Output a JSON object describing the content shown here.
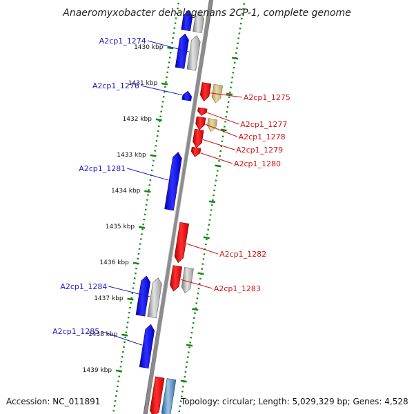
{
  "title": "Anaeromyxobacter dehalogenans 2CP-1, complete genome",
  "footer": {
    "accession": "Accession: NC_011891",
    "topology": "Topology: circular; Length: 5,029,329 bp; Genes: 4,528"
  },
  "colors": {
    "forward": "#0000ee",
    "reverse": "#ee0000",
    "label_forward": "#1a1acc",
    "label_reverse": "#d01010",
    "backbone": "#8c8c8c",
    "ticks": "#118811",
    "gray": "#999999",
    "khaki": "#c8bb7a",
    "steel": "#4a7fb0"
  },
  "genome_track": {
    "positions_kbp": [
      1430,
      1431,
      1432,
      1433,
      1434,
      1435,
      1436,
      1437,
      1438,
      1439
    ],
    "tick_labels": [
      "1430 kbp",
      "1431 kbp",
      "1432 kbp",
      "1433 kbp",
      "1434 kbp",
      "1435 kbp",
      "1436 kbp",
      "1437 kbp",
      "1438 kbp",
      "1439 kbp"
    ]
  },
  "genes": [
    {
      "label": "",
      "strand": "+",
      "color": "gray",
      "start_kbp": 1428.9,
      "end_kbp": 1429.45
    },
    {
      "label": "",
      "strand": "+",
      "color": "forward",
      "start_kbp": 1428.9,
      "end_kbp": 1429.45
    },
    {
      "label": "A2cp1_1274",
      "strand": "+",
      "color": "gray",
      "start_kbp": 1429.55,
      "end_kbp": 1430.5
    },
    {
      "label": "",
      "strand": "+",
      "color": "forward",
      "start_kbp": 1429.55,
      "end_kbp": 1430.5
    },
    {
      "label": "A2cp1_1275",
      "strand": "-",
      "color": "reverse",
      "start_kbp": 1430.8,
      "end_kbp": 1431.3
    },
    {
      "label": "",
      "strand": "-",
      "color": "khaki",
      "start_kbp": 1430.8,
      "end_kbp": 1431.3
    },
    {
      "label": "A2cp1_1276",
      "strand": "+",
      "color": "forward",
      "start_kbp": 1431.1,
      "end_kbp": 1431.35
    },
    {
      "label": "A2cp1_1277",
      "strand": "-",
      "color": "reverse",
      "start_kbp": 1431.5,
      "end_kbp": 1431.7
    },
    {
      "label": "A2cp1_1278",
      "strand": "-",
      "color": "reverse",
      "start_kbp": 1431.75,
      "end_kbp": 1432.1
    },
    {
      "label": "",
      "strand": "-",
      "color": "khaki",
      "start_kbp": 1431.75,
      "end_kbp": 1432.1
    },
    {
      "label": "A2cp1_1279",
      "strand": "-",
      "color": "reverse",
      "start_kbp": 1432.1,
      "end_kbp": 1432.6
    },
    {
      "label": "A2cp1_1280",
      "strand": "-",
      "color": "reverse",
      "start_kbp": 1432.6,
      "end_kbp": 1432.85
    },
    {
      "label": "A2cp1_1281",
      "strand": "+",
      "color": "forward",
      "start_kbp": 1432.8,
      "end_kbp": 1434.4
    },
    {
      "label": "A2cp1_1282",
      "strand": "-",
      "color": "reverse",
      "start_kbp": 1434.7,
      "end_kbp": 1435.8
    },
    {
      "label": "A2cp1_1283",
      "strand": "-",
      "color": "reverse",
      "start_kbp": 1435.9,
      "end_kbp": 1436.6
    },
    {
      "label": "",
      "strand": "-",
      "color": "gray",
      "start_kbp": 1435.9,
      "end_kbp": 1436.6
    },
    {
      "label": "A2cp1_1284",
      "strand": "+",
      "color": "gray",
      "start_kbp": 1436.3,
      "end_kbp": 1437.4
    },
    {
      "label": "",
      "strand": "+",
      "color": "forward",
      "start_kbp": 1436.3,
      "end_kbp": 1437.4
    },
    {
      "label": "A2cp1_1285",
      "strand": "+",
      "color": "forward",
      "start_kbp": 1437.6,
      "end_kbp": 1438.8
    },
    {
      "label": "",
      "strand": "-",
      "color": "reverse",
      "start_kbp": 1439.0,
      "end_kbp": 1440.1
    },
    {
      "label": "",
      "strand": "-",
      "color": "steel",
      "start_kbp": 1439.0,
      "end_kbp": 1440.1
    }
  ]
}
